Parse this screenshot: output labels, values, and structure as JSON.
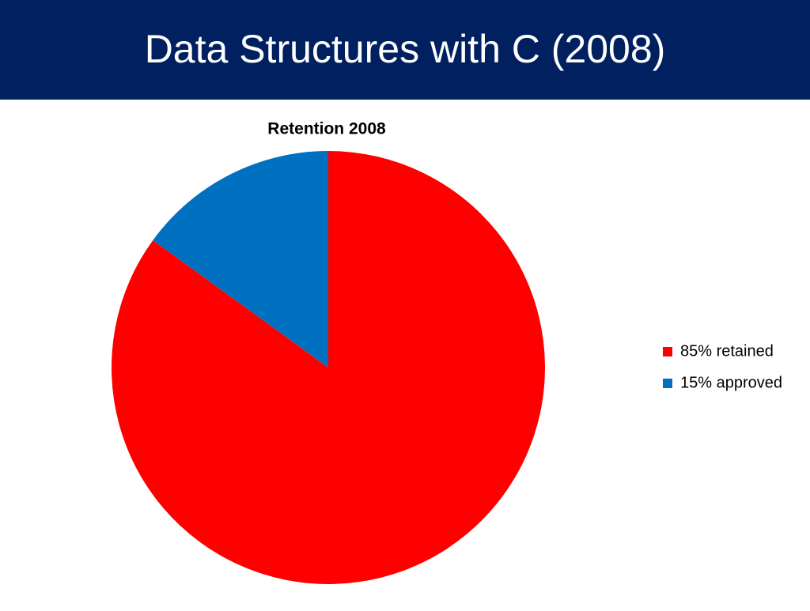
{
  "header": {
    "title": "Data Structures with C (2008)"
  },
  "chart_data": {
    "type": "pie",
    "title": "Retention 2008",
    "categories": [
      "85% retained",
      "15% approved"
    ],
    "values": [
      85,
      15
    ],
    "colors": [
      "#ff0000",
      "#0070c0"
    ],
    "legend": "right"
  }
}
